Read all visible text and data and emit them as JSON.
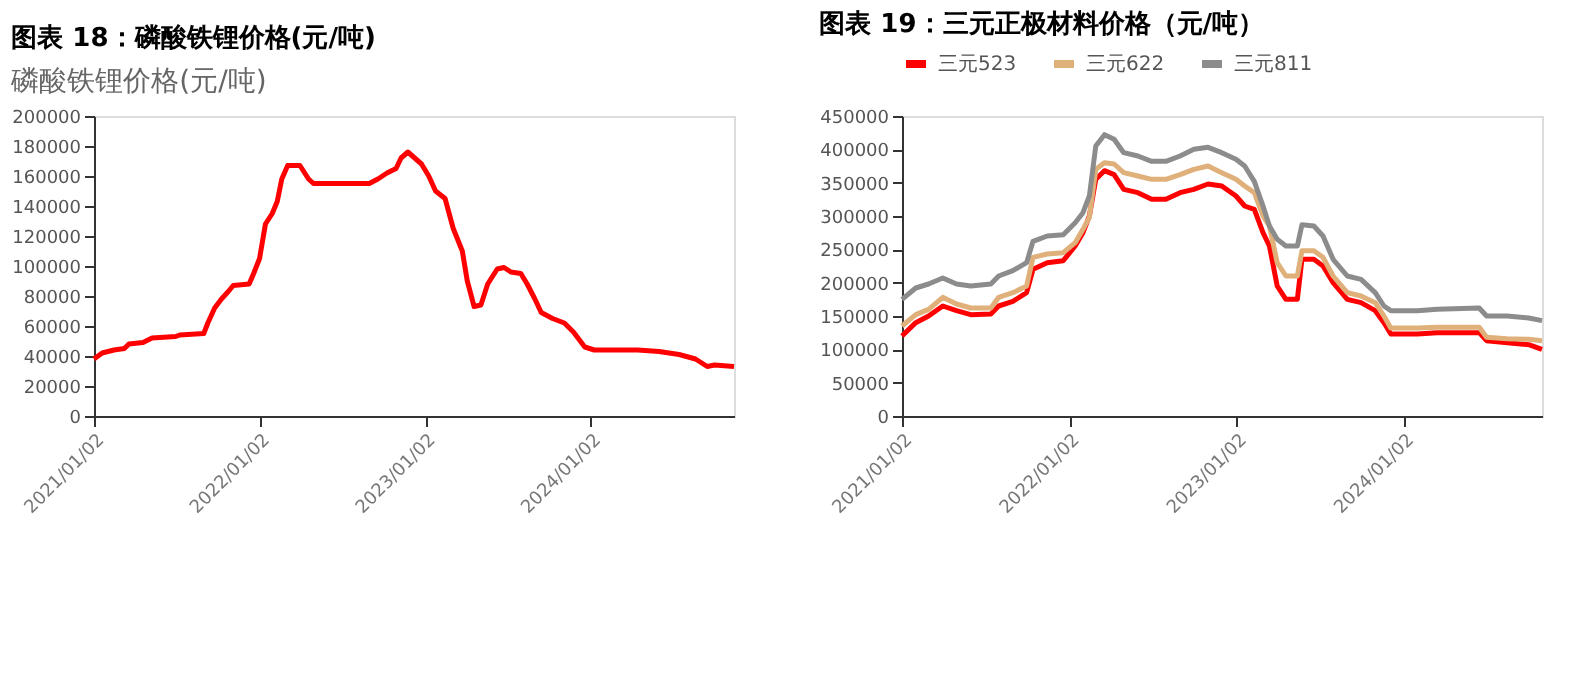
{
  "chart_data": [
    {
      "type": "line",
      "title": "图表 18：磷酸铁锂价格(元/吨)",
      "subtitle": "磷酸铁锂价格(元/吨)",
      "x": [
        "2021-01-02",
        "2021-01-20",
        "2021-02-15",
        "2021-03-10",
        "2021-03-20",
        "2021-04-20",
        "2021-05-10",
        "2021-07-01",
        "2021-07-10",
        "2021-09-01",
        "2021-09-10",
        "2021-09-25",
        "2021-10-10",
        "2021-10-25",
        "2021-11-05",
        "2021-12-10",
        "2021-12-20",
        "2022-01-02",
        "2022-01-15",
        "2022-01-30",
        "2022-02-10",
        "2022-02-20",
        "2022-03-05",
        "2022-04-01",
        "2022-04-20",
        "2022-05-01",
        "2022-09-01",
        "2022-09-20",
        "2022-10-10",
        "2022-10-30",
        "2022-11-10",
        "2022-11-25",
        "2022-12-10",
        "2022-12-25",
        "2023-01-10",
        "2023-01-25",
        "2023-02-15",
        "2023-03-05",
        "2023-03-25",
        "2023-04-05",
        "2023-04-20",
        "2023-05-05",
        "2023-05-20",
        "2023-06-10",
        "2023-06-25",
        "2023-07-10",
        "2023-08-01",
        "2023-08-15",
        "2023-09-01",
        "2023-09-15",
        "2023-10-10",
        "2023-11-05",
        "2023-11-25",
        "2023-12-20",
        "2024-01-10",
        "2024-04-15",
        "2024-06-01",
        "2024-07-15",
        "2024-08-20",
        "2024-09-15",
        "2024-10-01",
        "2024-11-13"
      ],
      "series": [
        {
          "color": "#ff0000",
          "values": [
            38000,
            42000,
            44000,
            45000,
            48000,
            49000,
            52000,
            53000,
            54000,
            55000,
            62000,
            72000,
            78000,
            83000,
            87000,
            88000,
            95000,
            105000,
            128000,
            135000,
            143000,
            158000,
            167000,
            167000,
            158000,
            155000,
            155000,
            158000,
            162000,
            165000,
            172000,
            176000,
            172000,
            168000,
            160000,
            150000,
            145000,
            125000,
            110000,
            90000,
            73000,
            74000,
            88000,
            98000,
            99000,
            96000,
            95000,
            88000,
            78000,
            69000,
            65000,
            62000,
            56000,
            46000,
            44000,
            44000,
            43000,
            41000,
            38000,
            33000,
            34000,
            33000
          ]
        }
      ],
      "xlim": [
        "2021-01-02",
        "2024-11-13"
      ],
      "xticks": [
        {
          "value": "2021-01-02",
          "label": "2021/01/02"
        },
        {
          "value": "2022-01-02",
          "label": "2022/01/02"
        },
        {
          "value": "2023-01-02",
          "label": "2023/01/02"
        },
        {
          "value": "2024-01-02",
          "label": "2024/01/02"
        }
      ],
      "ylim": [
        0,
        200000
      ],
      "yticks": [
        0,
        20000,
        40000,
        60000,
        80000,
        100000,
        120000,
        140000,
        160000,
        180000,
        200000
      ],
      "grid": false
    },
    {
      "type": "line",
      "title": "图表 19：三元正极材料价格（元/吨）",
      "x": [
        "2021-01-02",
        "2021-02-01",
        "2021-03-01",
        "2021-04-01",
        "2021-05-01",
        "2021-06-01",
        "2021-07-15",
        "2021-08-01",
        "2021-09-01",
        "2021-10-01",
        "2021-10-15",
        "2021-11-15",
        "2021-12-20",
        "2022-01-15",
        "2022-02-01",
        "2022-02-15",
        "2022-03-01",
        "2022-03-20",
        "2022-04-10",
        "2022-05-01",
        "2022-06-01",
        "2022-07-01",
        "2022-08-01",
        "2022-09-01",
        "2022-10-01",
        "2022-11-01",
        "2022-12-01",
        "2023-01-01",
        "2023-01-20",
        "2023-02-10",
        "2023-03-01",
        "2023-03-15",
        "2023-04-01",
        "2023-04-20",
        "2023-05-15",
        "2023-05-25",
        "2023-06-20",
        "2023-07-10",
        "2023-08-01",
        "2023-09-01",
        "2023-10-01",
        "2023-11-01",
        "2023-11-20",
        "2023-12-05",
        "2024-02-01",
        "2024-03-15",
        "2024-06-15",
        "2024-07-01",
        "2024-08-15",
        "2024-10-01",
        "2024-10-30"
      ],
      "series": [
        {
          "name": "三元523",
          "color": "#ff0000",
          "values": [
            120000,
            140000,
            150000,
            165000,
            158000,
            152000,
            153000,
            165000,
            172000,
            185000,
            220000,
            230000,
            233000,
            255000,
            275000,
            300000,
            355000,
            368000,
            362000,
            340000,
            335000,
            325000,
            325000,
            335000,
            340000,
            348000,
            345000,
            330000,
            315000,
            310000,
            275000,
            255000,
            195000,
            175000,
            175000,
            235000,
            235000,
            225000,
            200000,
            175000,
            170000,
            158000,
            140000,
            123000,
            123000,
            125000,
            125000,
            113000,
            110000,
            107000,
            100000
          ]
        },
        {
          "name": "三元622",
          "color": "#e0b07a",
          "values": [
            135000,
            152000,
            160000,
            178000,
            168000,
            162000,
            162000,
            178000,
            185000,
            195000,
            238000,
            243000,
            245000,
            260000,
            280000,
            298000,
            370000,
            380000,
            378000,
            365000,
            360000,
            355000,
            355000,
            362000,
            370000,
            375000,
            365000,
            355000,
            345000,
            335000,
            300000,
            285000,
            230000,
            210000,
            210000,
            248000,
            248000,
            238000,
            210000,
            185000,
            180000,
            170000,
            150000,
            132000,
            132000,
            133000,
            133000,
            118000,
            116000,
            115000,
            113000
          ]
        },
        {
          "name": "三元811",
          "color": "#8c8c8c",
          "values": [
            175000,
            192000,
            198000,
            207000,
            198000,
            195000,
            198000,
            210000,
            218000,
            230000,
            262000,
            270000,
            272000,
            290000,
            305000,
            330000,
            405000,
            422000,
            415000,
            395000,
            390000,
            382000,
            382000,
            390000,
            400000,
            403000,
            395000,
            385000,
            375000,
            352000,
            315000,
            285000,
            265000,
            255000,
            255000,
            287000,
            285000,
            270000,
            235000,
            210000,
            205000,
            185000,
            165000,
            158000,
            158000,
            160000,
            162000,
            150000,
            150000,
            147000,
            143000
          ]
        }
      ],
      "xlim": [
        "2021-01-02",
        "2024-10-30"
      ],
      "xticks": [
        {
          "value": "2021-01-02",
          "label": "2021/01/02"
        },
        {
          "value": "2022-01-02",
          "label": "2022/01/02"
        },
        {
          "value": "2023-01-02",
          "label": "2023/01/02"
        },
        {
          "value": "2024-01-02",
          "label": "2024/01/02"
        }
      ],
      "ylim": [
        0,
        450000
      ],
      "yticks": [
        0,
        50000,
        100000,
        150000,
        200000,
        250000,
        300000,
        350000,
        400000,
        450000
      ],
      "grid": false,
      "legend": "top"
    }
  ]
}
